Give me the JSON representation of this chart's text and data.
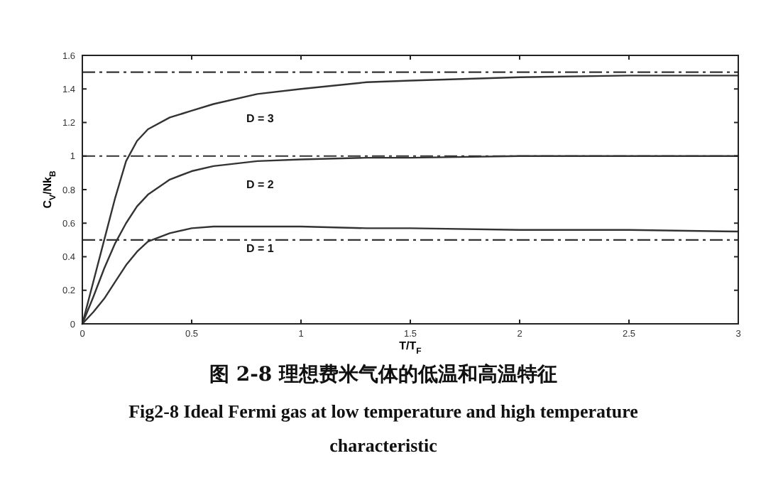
{
  "chart_data": {
    "type": "line",
    "xlabel": "T/T$_{F}$",
    "ylabel": "C$_{V}$/Nk$_{B}$",
    "x": [
      0,
      0.05,
      0.1,
      0.15,
      0.2,
      0.25,
      0.3,
      0.4,
      0.5,
      0.6,
      0.8,
      1,
      1.3,
      1.5,
      2,
      2.5,
      3
    ],
    "series": [
      {
        "name": "D = 3",
        "color": "#333333",
        "values": [
          0,
          0.25,
          0.5,
          0.75,
          0.97,
          1.09,
          1.16,
          1.23,
          1.27,
          1.31,
          1.37,
          1.4,
          1.44,
          1.45,
          1.47,
          1.48,
          1.48
        ]
      },
      {
        "name": "D = 2",
        "color": "#333333",
        "values": [
          0,
          0.16,
          0.33,
          0.48,
          0.6,
          0.7,
          0.77,
          0.86,
          0.91,
          0.94,
          0.97,
          0.98,
          0.99,
          0.99,
          1.0,
          1.0,
          1.0
        ]
      },
      {
        "name": "D = 1",
        "color": "#333333",
        "values": [
          0,
          0.07,
          0.15,
          0.25,
          0.35,
          0.43,
          0.49,
          0.54,
          0.57,
          0.58,
          0.58,
          0.58,
          0.57,
          0.57,
          0.56,
          0.56,
          0.55
        ]
      }
    ],
    "xlim": [
      0,
      3
    ],
    "ylim": [
      0,
      1.6
    ],
    "xticks": [
      0,
      0.5,
      1,
      1.5,
      2,
      2.5,
      3
    ],
    "yticks": [
      0,
      0.2,
      0.4,
      0.6,
      0.8,
      1,
      1.2,
      1.4,
      1.6
    ],
    "ref_lines": [
      {
        "axis": "y",
        "value": 1.5,
        "color": "#333333",
        "line_style": "dashed"
      },
      {
        "axis": "y",
        "value": 1,
        "color": "#333333",
        "line_style": "dashed"
      },
      {
        "axis": "y",
        "value": 0.5,
        "color": "#333333",
        "line_style": "dashed"
      }
    ],
    "annotations": [
      "图 2-8 理想费米气体的低温和高温特征",
      "Fig2-8 Ideal Fermi gas at low temperature and high temperature characteristic"
    ]
  }
}
